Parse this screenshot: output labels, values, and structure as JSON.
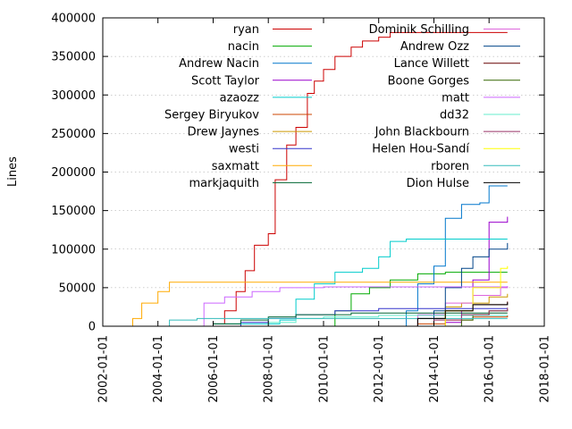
{
  "chart_data": {
    "type": "line",
    "title": "",
    "xlabel": "",
    "ylabel": "Lines",
    "xlim": [
      "2002-01-01",
      "2018-01-01"
    ],
    "ylim": [
      0,
      400000
    ],
    "x_ticks": [
      "2002-01-01",
      "2004-01-01",
      "2006-01-01",
      "2008-01-01",
      "2010-01-01",
      "2012-01-01",
      "2014-01-01",
      "2016-01-01",
      "2018-01-01"
    ],
    "y_ticks": [
      0,
      50000,
      100000,
      150000,
      200000,
      250000,
      300000,
      350000,
      400000
    ],
    "grid": true,
    "step_lines": true,
    "legend_position": "top-left, two columns inside plot",
    "series": [
      {
        "name": "ryan",
        "color": "#cc0000",
        "points": [
          [
            "2005-09-01",
            0
          ],
          [
            "2006-01-01",
            3000
          ],
          [
            "2006-06-01",
            20000
          ],
          [
            "2006-11-01",
            45000
          ],
          [
            "2007-03-01",
            72000
          ],
          [
            "2007-07-01",
            105000
          ],
          [
            "2008-01-01",
            120000
          ],
          [
            "2008-04-01",
            190000
          ],
          [
            "2008-09-01",
            235000
          ],
          [
            "2009-01-01",
            258000
          ],
          [
            "2009-06-01",
            302000
          ],
          [
            "2009-09-01",
            318000
          ],
          [
            "2010-01-01",
            333000
          ],
          [
            "2010-06-01",
            350000
          ],
          [
            "2011-01-01",
            362000
          ],
          [
            "2011-06-01",
            370000
          ],
          [
            "2012-01-01",
            375000
          ],
          [
            "2012-06-01",
            381000
          ],
          [
            "2013-06-01",
            381000
          ],
          [
            "2016-09-01",
            381000
          ]
        ]
      },
      {
        "name": "nacin",
        "color": "#00aa00",
        "points": [
          [
            "2010-01-01",
            0
          ],
          [
            "2010-06-01",
            20000
          ],
          [
            "2011-01-01",
            42000
          ],
          [
            "2011-09-01",
            50000
          ],
          [
            "2012-06-01",
            60000
          ],
          [
            "2013-06-01",
            68000
          ],
          [
            "2014-06-01",
            70000
          ],
          [
            "2016-09-01",
            70000
          ]
        ]
      },
      {
        "name": "Andrew Nacin",
        "color": "#0077cc",
        "points": [
          [
            "2012-09-01",
            0
          ],
          [
            "2013-01-01",
            20000
          ],
          [
            "2013-06-01",
            55000
          ],
          [
            "2014-01-01",
            78000
          ],
          [
            "2014-06-01",
            140000
          ],
          [
            "2015-01-01",
            158000
          ],
          [
            "2015-09-01",
            160000
          ],
          [
            "2016-01-01",
            182000
          ],
          [
            "2016-09-01",
            182000
          ]
        ]
      },
      {
        "name": "Scott Taylor",
        "color": "#9900cc",
        "points": [
          [
            "2013-06-01",
            0
          ],
          [
            "2014-06-01",
            5000
          ],
          [
            "2015-01-01",
            20000
          ],
          [
            "2015-06-01",
            60000
          ],
          [
            "2016-01-01",
            135000
          ],
          [
            "2016-09-01",
            142000
          ]
        ]
      },
      {
        "name": "azaozz",
        "color": "#00cccc",
        "points": [
          [
            "2004-06-01",
            0
          ],
          [
            "2006-01-01",
            3000
          ],
          [
            "2008-06-01",
            8000
          ],
          [
            "2009-01-01",
            35000
          ],
          [
            "2009-09-01",
            55000
          ],
          [
            "2010-06-01",
            70000
          ],
          [
            "2011-06-01",
            75000
          ],
          [
            "2012-01-01",
            90000
          ],
          [
            "2012-06-01",
            110000
          ],
          [
            "2013-01-01",
            113000
          ],
          [
            "2016-09-01",
            113000
          ]
        ]
      },
      {
        "name": "Sergey Biryukov",
        "color": "#cc4400",
        "points": [
          [
            "2012-06-01",
            0
          ],
          [
            "2013-06-01",
            3000
          ],
          [
            "2014-06-01",
            8000
          ],
          [
            "2015-06-01",
            12000
          ],
          [
            "2016-09-01",
            14000
          ]
        ]
      },
      {
        "name": "Drew Jaynes",
        "color": "#cc9900",
        "points": [
          [
            "2013-06-01",
            0
          ],
          [
            "2014-01-01",
            10000
          ],
          [
            "2014-06-01",
            25000
          ],
          [
            "2015-01-01",
            30000
          ],
          [
            "2016-01-01",
            38000
          ],
          [
            "2016-09-01",
            42000
          ]
        ]
      },
      {
        "name": "westi",
        "color": "#3333cc",
        "points": [
          [
            "2006-06-01",
            0
          ],
          [
            "2007-01-01",
            5000
          ],
          [
            "2008-01-01",
            10000
          ],
          [
            "2009-01-01",
            15000
          ],
          [
            "2010-06-01",
            20000
          ],
          [
            "2012-01-01",
            23000
          ],
          [
            "2016-09-01",
            23000
          ]
        ]
      },
      {
        "name": "saxmatt",
        "color": "#ffaa00",
        "points": [
          [
            "2003-01-01",
            0
          ],
          [
            "2003-02-01",
            10000
          ],
          [
            "2003-06-01",
            30000
          ],
          [
            "2004-01-01",
            45000
          ],
          [
            "2004-06-01",
            57000
          ],
          [
            "2016-09-01",
            57000
          ]
        ]
      },
      {
        "name": "markjaquith",
        "color": "#006633",
        "points": [
          [
            "2004-06-01",
            0
          ],
          [
            "2006-01-01",
            3000
          ],
          [
            "2007-01-01",
            8000
          ],
          [
            "2008-01-01",
            12000
          ],
          [
            "2009-01-01",
            15000
          ],
          [
            "2011-01-01",
            17000
          ],
          [
            "2016-09-01",
            17000
          ]
        ]
      },
      {
        "name": "Dominik Schilling",
        "color": "#dd66dd",
        "points": [
          [
            "2012-06-01",
            0
          ],
          [
            "2013-06-01",
            15000
          ],
          [
            "2014-06-01",
            30000
          ],
          [
            "2015-06-01",
            40000
          ],
          [
            "2016-06-01",
            50000
          ],
          [
            "2016-09-01",
            52000
          ]
        ]
      },
      {
        "name": "Andrew Ozz",
        "color": "#004488",
        "points": [
          [
            "2013-06-01",
            0
          ],
          [
            "2014-01-01",
            20000
          ],
          [
            "2014-06-01",
            50000
          ],
          [
            "2015-01-01",
            75000
          ],
          [
            "2015-06-01",
            90000
          ],
          [
            "2016-01-01",
            100000
          ],
          [
            "2016-09-01",
            108000
          ]
        ]
      },
      {
        "name": "Lance Willett",
        "color": "#660000",
        "points": [
          [
            "2012-06-01",
            0
          ],
          [
            "2013-06-01",
            10000
          ],
          [
            "2014-06-01",
            20000
          ],
          [
            "2015-06-01",
            28000
          ],
          [
            "2016-09-01",
            32000
          ]
        ]
      },
      {
        "name": "Boone Gorges",
        "color": "#336600",
        "points": [
          [
            "2014-06-01",
            0
          ],
          [
            "2015-01-01",
            8000
          ],
          [
            "2015-06-01",
            15000
          ],
          [
            "2016-01-01",
            20000
          ],
          [
            "2016-09-01",
            22000
          ]
        ]
      },
      {
        "name": "matt",
        "color": "#cc66ff",
        "points": [
          [
            "2005-06-01",
            0
          ],
          [
            "2005-09-01",
            30000
          ],
          [
            "2006-06-01",
            38000
          ],
          [
            "2007-06-01",
            45000
          ],
          [
            "2008-06-01",
            50000
          ],
          [
            "2010-01-01",
            51000
          ],
          [
            "2016-09-01",
            51000
          ]
        ]
      },
      {
        "name": "dd32",
        "color": "#66eecc",
        "points": [
          [
            "2007-01-01",
            0
          ],
          [
            "2008-01-01",
            5000
          ],
          [
            "2009-01-01",
            10000
          ],
          [
            "2010-01-01",
            12000
          ],
          [
            "2012-01-01",
            14000
          ],
          [
            "2016-09-01",
            14000
          ]
        ]
      },
      {
        "name": "John Blackbourn",
        "color": "#993366",
        "points": [
          [
            "2013-01-01",
            0
          ],
          [
            "2014-01-01",
            8000
          ],
          [
            "2015-01-01",
            15000
          ],
          [
            "2016-01-01",
            20000
          ],
          [
            "2016-09-01",
            24000
          ]
        ]
      },
      {
        "name": "Helen Hou-Sandí",
        "color": "#ffff00",
        "points": [
          [
            "2013-06-01",
            0
          ],
          [
            "2014-06-01",
            20000
          ],
          [
            "2015-06-01",
            50000
          ],
          [
            "2016-06-01",
            75000
          ],
          [
            "2016-09-01",
            78000
          ]
        ]
      },
      {
        "name": "rboren",
        "color": "#33bbbb",
        "points": [
          [
            "2004-01-01",
            0
          ],
          [
            "2004-06-01",
            8000
          ],
          [
            "2005-06-01",
            10000
          ],
          [
            "2016-09-01",
            10000
          ]
        ]
      },
      {
        "name": "Dion Hulse",
        "color": "#000000",
        "points": [
          [
            "2012-06-01",
            0
          ],
          [
            "2013-06-01",
            10000
          ],
          [
            "2014-06-01",
            20000
          ],
          [
            "2015-06-01",
            28000
          ],
          [
            "2016-09-01",
            31000
          ]
        ]
      }
    ]
  }
}
